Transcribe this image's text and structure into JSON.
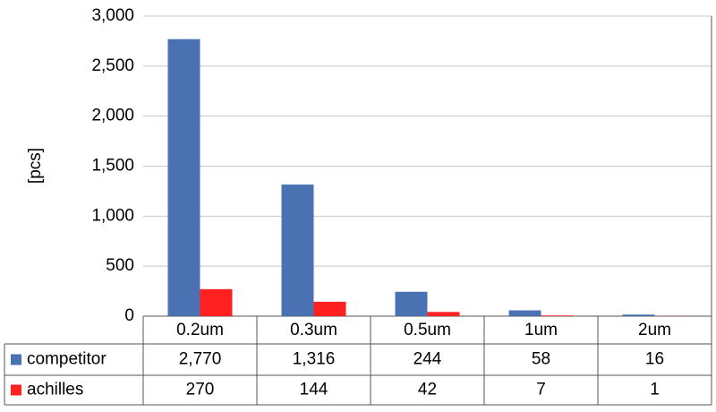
{
  "chart_data": {
    "type": "bar",
    "y_label": "[pcs]",
    "categories": [
      "0.2um",
      "0.3um",
      "0.5um",
      "1um",
      "2um"
    ],
    "series": [
      {
        "name": "competitor",
        "color": "#4a72b2",
        "values": [
          2770,
          1316,
          244,
          58,
          16
        ],
        "value_labels": [
          "2,770",
          "1,316",
          "244",
          "58",
          "16"
        ]
      },
      {
        "name": "achilles",
        "color": "#ff2020",
        "values": [
          270,
          144,
          42,
          7,
          1
        ]
      }
    ],
    "ylim": [
      0,
      3000
    ],
    "yticks": [
      0,
      500,
      {
        "value": 1000,
        "label": "1,000"
      },
      {
        "value": 1500,
        "label": "1,500"
      },
      {
        "value": 2000,
        "label": "2,000"
      },
      {
        "value": 2500,
        "label": "2,500"
      },
      {
        "value": 3000,
        "label": "3,000"
      }
    ],
    "grid": true
  }
}
